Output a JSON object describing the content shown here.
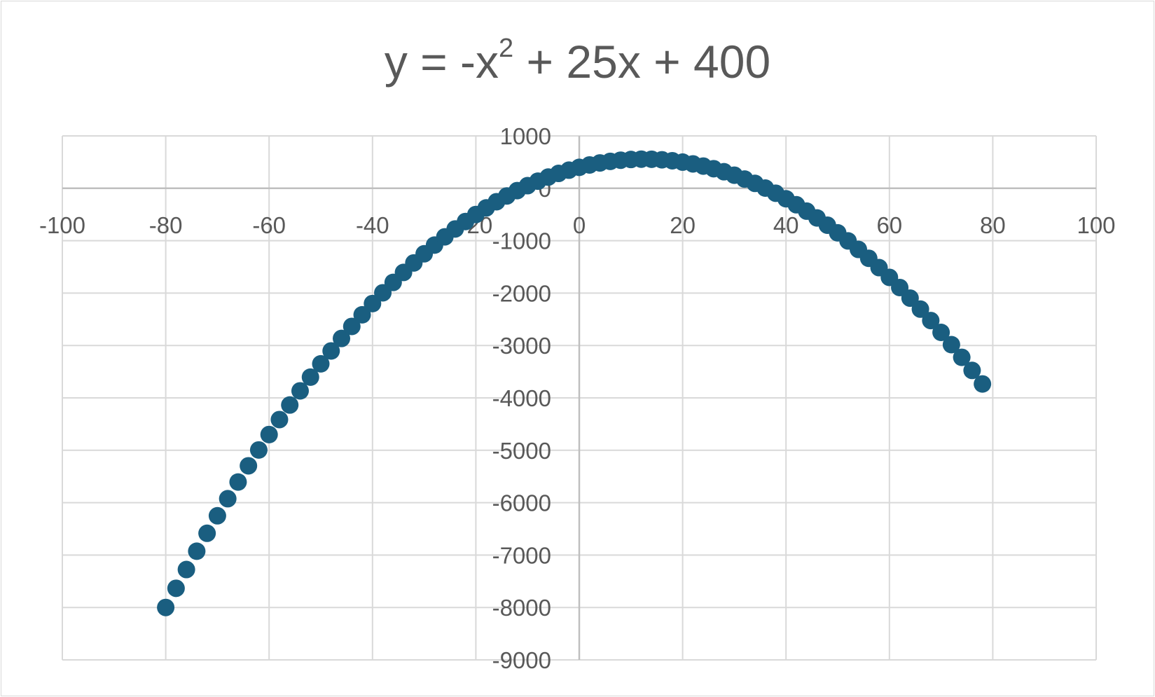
{
  "chart_data": {
    "type": "scatter",
    "title": {
      "prefix": "y = -x",
      "superscript": "2",
      "suffix": " + 25x + 400"
    },
    "xlabel": "",
    "ylabel": "",
    "xlim": [
      -100,
      100
    ],
    "ylim": [
      -9000,
      1000
    ],
    "x_ticks": [
      -100,
      -80,
      -60,
      -40,
      -20,
      0,
      20,
      40,
      60,
      80,
      100
    ],
    "x_tick_labels": [
      "-100",
      "-80",
      "-60",
      "-40",
      "-20",
      "0",
      "20",
      "40",
      "60",
      "80",
      "100"
    ],
    "y_ticks": [
      1000,
      0,
      -1000,
      -2000,
      -3000,
      -4000,
      -5000,
      -6000,
      -7000,
      -8000,
      -9000
    ],
    "y_tick_labels": [
      "1000",
      "0",
      "-1000",
      "-2000",
      "-3000",
      "-4000",
      "-5000",
      "-6000",
      "-7000",
      "-8000",
      "-9000"
    ],
    "grid": true,
    "legend": "none",
    "marker_color": "#1a5e80",
    "series": [
      {
        "x": [
          -80,
          -78,
          -76,
          -74,
          -72,
          -70,
          -68,
          -66,
          -64,
          -62,
          -60,
          -58,
          -56,
          -54,
          -52,
          -50,
          -48,
          -46,
          -44,
          -42,
          -40,
          -38,
          -36,
          -34,
          -32,
          -30,
          -28,
          -26,
          -24,
          -22,
          -20,
          -18,
          -16,
          -14,
          -12,
          -10,
          -8,
          -6,
          -4,
          -2,
          0,
          2,
          4,
          6,
          8,
          10,
          12,
          14,
          16,
          18,
          20,
          22,
          24,
          26,
          28,
          30,
          32,
          34,
          36,
          38,
          40,
          42,
          44,
          46,
          48,
          50,
          52,
          54,
          56,
          58,
          60,
          62,
          64,
          66,
          68,
          70,
          72,
          74,
          76,
          78
        ],
        "y": [
          -8000,
          -7634,
          -7276,
          -6926,
          -6584,
          -6250,
          -5924,
          -5606,
          -5296,
          -4994,
          -4700,
          -4414,
          -4136,
          -3866,
          -3604,
          -3350,
          -3104,
          -2866,
          -2636,
          -2414,
          -2200,
          -1994,
          -1796,
          -1606,
          -1424,
          -1250,
          -1084,
          -926,
          -776,
          -634,
          -500,
          -374,
          -256,
          -146,
          -44,
          50,
          136,
          214,
          284,
          346,
          400,
          446,
          484,
          514,
          536,
          550,
          556,
          554,
          544,
          526,
          500,
          466,
          424,
          374,
          316,
          250,
          176,
          94,
          4,
          -94,
          -200,
          -314,
          -436,
          -566,
          -704,
          -850,
          -1004,
          -1166,
          -1336,
          -1514,
          -1700,
          -1894,
          -2096,
          -2306,
          -2524,
          -2750,
          -2984,
          -3226,
          -3476,
          -3734
        ]
      }
    ]
  }
}
